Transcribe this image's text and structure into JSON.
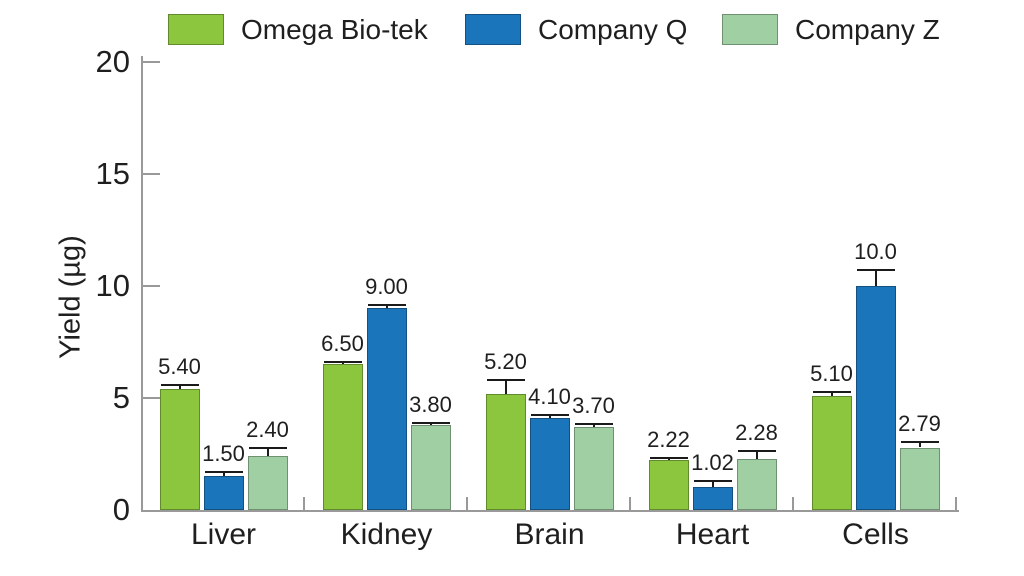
{
  "figure": {
    "background": "#ffffff",
    "text_color": "#1f1f1f",
    "axis_color": "#999999",
    "error_bar_color": "#1a1a1a"
  },
  "chart_data": {
    "type": "bar",
    "title": "",
    "categories": [
      "Liver",
      "Kidney",
      "Brain",
      "Heart",
      "Cells"
    ],
    "series": [
      {
        "name": "Omega Bio-tek",
        "color": "#8cc63f",
        "values": [
          5.4,
          6.5,
          5.2,
          2.22,
          5.1
        ],
        "value_labels": [
          "5.40",
          "6.50",
          "5.20",
          "2.22",
          "5.10"
        ],
        "errors": [
          0.2,
          0.1,
          0.6,
          0.08,
          0.15
        ]
      },
      {
        "name": "Company Q",
        "color": "#1b75bb",
        "values": [
          1.5,
          9.0,
          4.1,
          1.02,
          10.0
        ],
        "value_labels": [
          "1.50",
          "9.00",
          "4.10",
          "1.02",
          "10.0"
        ],
        "errors": [
          0.2,
          0.15,
          0.15,
          0.27,
          0.7
        ]
      },
      {
        "name": "Company Z",
        "color": "#9fcfa2",
        "values": [
          2.4,
          3.8,
          3.7,
          2.28,
          2.79
        ],
        "value_labels": [
          "2.40",
          "3.80",
          "3.70",
          "2.28",
          "2.79"
        ],
        "errors": [
          0.35,
          0.08,
          0.15,
          0.35,
          0.25
        ]
      }
    ],
    "xlabel": "",
    "ylabel": "Yield (µg)",
    "yticks": [
      "0",
      "5",
      "10",
      "15",
      "20"
    ],
    "ylim": [
      0,
      20
    ],
    "grid": false,
    "error_bars": true,
    "legend_position": "top"
  }
}
